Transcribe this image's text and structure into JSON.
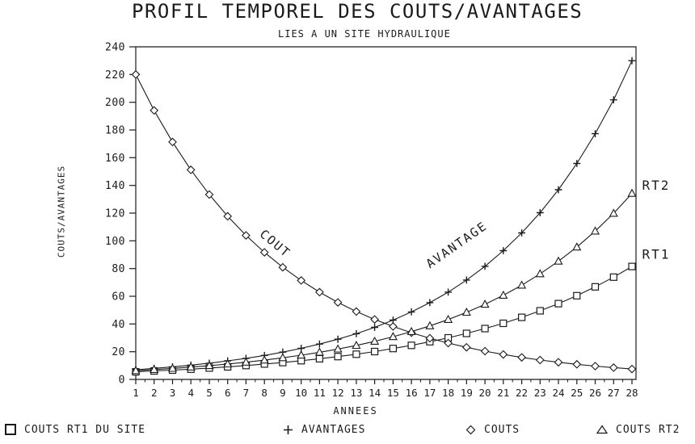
{
  "chart_data": {
    "type": "line",
    "title": "PROFIL TEMPOREL DES COUTS/AVANTAGES",
    "subtitle": "LIES A UN SITE HYDRAULIQUE",
    "xlabel": "ANNEES",
    "ylabel": "COUTS/AVANTAGES",
    "xlim": [
      1,
      28
    ],
    "ylim": [
      0,
      240
    ],
    "grid": false,
    "legend_position": "bottom",
    "x": [
      1,
      2,
      3,
      4,
      5,
      6,
      7,
      8,
      9,
      10,
      11,
      12,
      13,
      14,
      15,
      16,
      17,
      18,
      19,
      20,
      21,
      22,
      23,
      24,
      25,
      26,
      27,
      28
    ],
    "yticks": [
      0,
      20,
      40,
      60,
      80,
      100,
      120,
      140,
      160,
      180,
      200,
      220,
      240
    ],
    "series": [
      {
        "name": "COUTS RT1 DU SITE",
        "marker": "square",
        "values": [
          5.5,
          6.1,
          6.7,
          7.4,
          8.2,
          9.1,
          10,
          11.1,
          12.2,
          13.5,
          14.9,
          16.5,
          18.2,
          20.1,
          22.3,
          24.6,
          27.2,
          30,
          33.2,
          36.7,
          40.5,
          44.8,
          49.5,
          54.7,
          60.4,
          66.8,
          73.8,
          81.5
        ]
      },
      {
        "name": "AVANTAGES",
        "marker": "plus",
        "values": [
          7,
          8,
          9.1,
          10.3,
          11.7,
          13.4,
          15.2,
          17.3,
          19.7,
          22.4,
          25.5,
          29,
          33,
          37.6,
          42.8,
          48.7,
          55.4,
          63,
          71.7,
          81.6,
          92.9,
          105.7,
          120.3,
          136.9,
          155.8,
          177.3,
          201.7,
          230
        ]
      },
      {
        "name": "COUTS",
        "marker": "diamond",
        "values": [
          220,
          194.1,
          171.3,
          151.2,
          133.4,
          117.7,
          103.9,
          91.7,
          80.9,
          71.4,
          63,
          55.6,
          49,
          43.3,
          38.2,
          33.7,
          29.7,
          26.2,
          23.2,
          20.4,
          18,
          15.9,
          14,
          12.4,
          10.9,
          9.6,
          8.5,
          7.5
        ]
      },
      {
        "name": "COUTS RT2",
        "marker": "triangle",
        "values": [
          6.3,
          7.1,
          7.9,
          8.9,
          9.9,
          11.1,
          12.4,
          13.9,
          15.6,
          17.5,
          19.6,
          21.9,
          24.5,
          27.5,
          30.8,
          34.5,
          38.6,
          43.2,
          48.4,
          54.2,
          60.7,
          68,
          76.2,
          85.3,
          95.5,
          107,
          119.8,
          134.2
        ]
      }
    ],
    "annotations": [
      {
        "text": "COUT",
        "year": 7.7,
        "value": 104,
        "rotate": 40
      },
      {
        "text": "AVANTAGE",
        "year": 17.0,
        "value": 80,
        "rotate": -35
      },
      {
        "text": "RT2",
        "year": 28.55,
        "value": 137,
        "rotate": 0
      },
      {
        "text": "RT1",
        "year": 28.55,
        "value": 87,
        "rotate": 0
      }
    ],
    "ink_color": "#1b1b1b",
    "background_color": "#ffffff"
  }
}
